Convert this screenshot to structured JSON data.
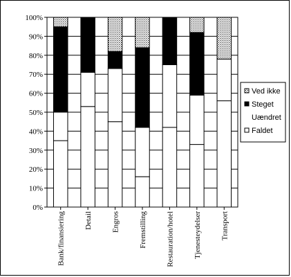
{
  "chart_data": {
    "type": "bar",
    "stacked": true,
    "percent": true,
    "categories": [
      "Bank/finansiering",
      "Detail",
      "Engros",
      "Fremstilling",
      "Restauration/hotel",
      "Tjenesteydelser",
      "Transport"
    ],
    "series": [
      {
        "name": "Faldet",
        "fill": "white",
        "values": [
          35,
          53,
          45,
          16,
          42,
          33,
          56
        ]
      },
      {
        "name": "Uændret",
        "fill": "white",
        "values": [
          15,
          18,
          28,
          26,
          33,
          26,
          22
        ]
      },
      {
        "name": "Steget",
        "fill": "black",
        "values": [
          45,
          29,
          9,
          42,
          25,
          33,
          0
        ]
      },
      {
        "name": "Ved ikke",
        "fill": "dotted",
        "values": [
          5,
          0,
          18,
          16,
          0,
          8,
          22
        ]
      }
    ],
    "yticks": [
      "0%",
      "10%",
      "20%",
      "30%",
      "40%",
      "50%",
      "60%",
      "70%",
      "80%",
      "90%",
      "100%"
    ],
    "ylim": [
      0,
      100
    ],
    "grid": true,
    "legend": {
      "position": "right",
      "order": [
        "Ved ikke",
        "Steget",
        "Uændret",
        "Faldet"
      ]
    },
    "title": "",
    "xlabel": "",
    "ylabel": ""
  }
}
